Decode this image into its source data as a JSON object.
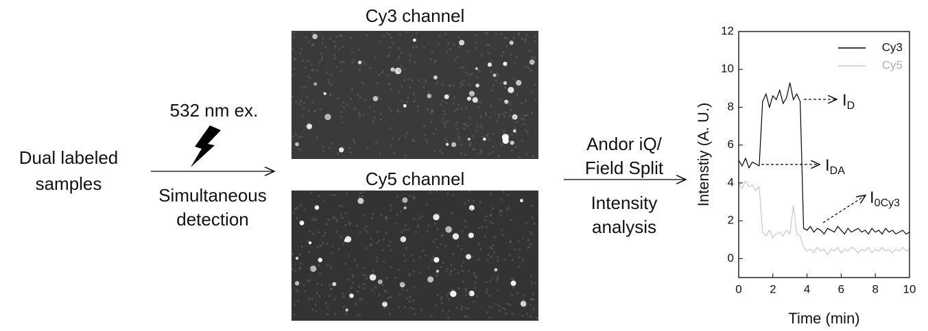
{
  "diagram": {
    "sample_label": [
      "Dual labeled",
      "samples"
    ],
    "excitation_label": "532 nm ex.",
    "detection_label": [
      "Simultaneous",
      "detection"
    ],
    "images": [
      {
        "title": "Cy3 channel"
      },
      {
        "title": "Cy5 channel"
      }
    ],
    "analysis_label": [
      "Andor iQ/",
      "Field Split"
    ],
    "analysis_label2": [
      "Intensity",
      "analysis"
    ]
  },
  "chart_data": {
    "type": "line",
    "x_label": "Time (min)",
    "y_label": "Intenstiy (A. U.)",
    "xlim": [
      0,
      10
    ],
    "xticks": [
      0,
      2,
      4,
      6,
      8,
      10
    ],
    "ylim": [
      -1,
      12
    ],
    "yticks": [
      0,
      2,
      4,
      6,
      8,
      10,
      12
    ],
    "legend": "top-right",
    "x": [
      0,
      0.2,
      0.4,
      0.6,
      0.8,
      1,
      1.2,
      1.4,
      1.6,
      1.8,
      2,
      2.2,
      2.4,
      2.6,
      2.8,
      3,
      3.2,
      3.4,
      3.6,
      3.8,
      4,
      4.2,
      4.4,
      4.6,
      4.8,
      5,
      5.2,
      5.4,
      5.6,
      5.8,
      6,
      6.2,
      6.4,
      6.6,
      6.8,
      7,
      7.2,
      7.4,
      7.6,
      7.8,
      8,
      8.2,
      8.4,
      8.6,
      8.8,
      9,
      9.2,
      9.4,
      9.6,
      9.8,
      10
    ],
    "series": [
      {
        "name": "Cy3",
        "color": "#000000",
        "values": [
          5.2,
          4.9,
          5.3,
          4.8,
          5.1,
          5.0,
          4.9,
          8.3,
          8.7,
          8.0,
          8.6,
          8.4,
          8.9,
          8.2,
          8.5,
          9.3,
          8.4,
          8.7,
          8.3,
          1.6,
          1.5,
          1.7,
          1.4,
          1.6,
          1.5,
          1.3,
          1.6,
          1.5,
          1.4,
          1.7,
          1.5,
          1.3,
          1.6,
          1.4,
          1.5,
          1.6,
          1.4,
          1.5,
          1.3,
          1.6,
          1.4,
          1.5,
          1.3,
          1.6,
          1.4,
          1.5,
          1.3,
          1.4,
          1.5,
          1.3,
          1.4
        ]
      },
      {
        "name": "Cy5",
        "color": "#c8c8c8",
        "values": [
          4.0,
          3.7,
          4.1,
          3.8,
          3.9,
          3.6,
          3.8,
          1.4,
          1.2,
          1.5,
          1.1,
          1.3,
          1.4,
          1.2,
          1.5,
          1.3,
          2.8,
          1.3,
          1.2,
          0.6,
          0.4,
          0.5,
          0.3,
          0.6,
          0.4,
          0.5,
          0.2,
          0.5,
          0.4,
          0.6,
          0.3,
          0.5,
          0.4,
          0.6,
          0.5,
          0.3,
          0.5,
          0.4,
          0.6,
          0.3,
          0.5,
          0.4,
          0.6,
          0.4,
          0.5,
          0.3,
          0.5,
          0.4,
          0.6,
          0.4,
          0.5
        ]
      }
    ],
    "annotations": [
      {
        "main": "I",
        "sub": "D"
      },
      {
        "main": "I",
        "sub": "DA"
      },
      {
        "main": "I",
        "sub": "0Cy3"
      }
    ]
  }
}
